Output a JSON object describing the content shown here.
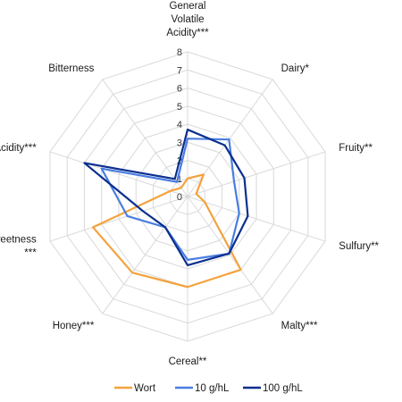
{
  "chart_data": {
    "type": "radar",
    "axes": [
      [
        "General",
        "Volatile",
        "Acidity***"
      ],
      [
        "Dairy*"
      ],
      [
        "Fruity**"
      ],
      [
        "Sulfury**"
      ],
      [
        "Malty***"
      ],
      [
        "Cereal**"
      ],
      [
        "Honey***"
      ],
      [
        "Sweetness",
        "***"
      ],
      [
        "Acidity***"
      ],
      [
        "Bitterness"
      ]
    ],
    "rlim": [
      0,
      8
    ],
    "ticks": [
      "0",
      "1",
      "2",
      "3",
      "4",
      "5",
      "6",
      "7",
      "8"
    ],
    "series": [
      {
        "name": "Wort",
        "color": "#f4a23c",
        "values": [
          1.0,
          1.5,
          0.5,
          1.0,
          5.0,
          5.0,
          5.2,
          5.5,
          1.0,
          0.6
        ]
      },
      {
        "name": "10 g/hL",
        "color": "#4a7de0",
        "values": [
          3.2,
          3.9,
          2.7,
          3.0,
          3.9,
          3.5,
          2.1,
          3.5,
          5.0,
          1.0
        ]
      },
      {
        "name": "100 g/hL",
        "color": "#0b2f8f",
        "values": [
          3.7,
          3.5,
          3.3,
          3.5,
          3.9,
          3.8,
          2.1,
          2.6,
          6.0,
          1.2
        ]
      }
    ],
    "grid": true,
    "legend_position": "bottom"
  }
}
